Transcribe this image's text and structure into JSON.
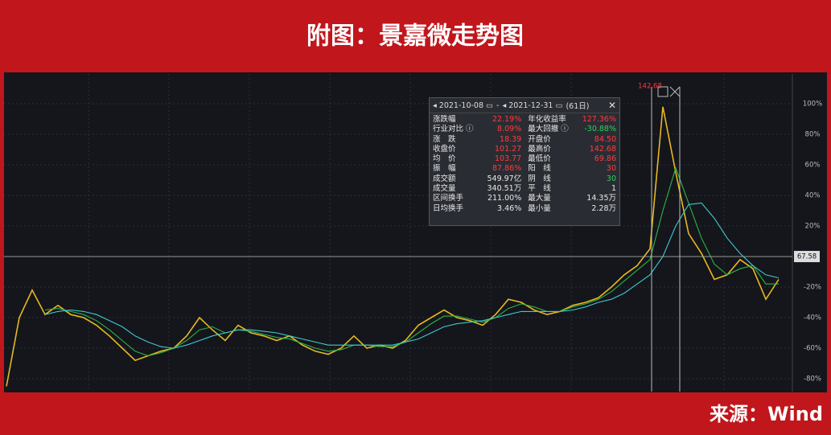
{
  "chart_data": {
    "type": "line",
    "title": "附图：景嘉微走势图",
    "source": "来源：Wind",
    "peak_label": "142.68",
    "last_price_label": "67.58",
    "last_price_level": 0,
    "ylim": [
      -88.4,
      119.5
    ],
    "yticks": [
      {
        "value": 100,
        "label": "100%"
      },
      {
        "value": 80,
        "label": "80%"
      },
      {
        "value": 60,
        "label": "60%"
      },
      {
        "value": 40,
        "label": "40%"
      },
      {
        "value": 20,
        "label": "20%"
      },
      {
        "value": -20,
        "label": "-20%"
      },
      {
        "value": -40,
        "label": "-40%"
      },
      {
        "value": -60,
        "label": "-60%"
      },
      {
        "value": -80,
        "label": "-80%"
      }
    ],
    "grid": true,
    "series": [
      {
        "color": "#e8b820",
        "values": [
          -85,
          -40,
          -22,
          -38,
          -32,
          -38,
          -40,
          -45,
          -52,
          -60,
          -68,
          -65,
          -62,
          -60,
          -52,
          -40,
          -48,
          -55,
          -45,
          -50,
          -52,
          -55,
          -52,
          -58,
          -62,
          -64,
          -60,
          -52,
          -60,
          -58,
          -60,
          -55,
          -45,
          -40,
          -35,
          -40,
          -42,
          -45,
          -38,
          -28,
          -30,
          -35,
          -38,
          -36,
          -32,
          -30,
          -27,
          -20,
          -12,
          -6,
          5,
          98,
          55,
          15,
          2,
          -15,
          -12,
          -2,
          -8,
          -28,
          -15
        ]
      },
      {
        "color": "#2db34a",
        "values": [
          null,
          null,
          null,
          -35,
          -34,
          -36,
          -38,
          -42,
          -48,
          -55,
          -62,
          -65,
          -63,
          -60,
          -55,
          -48,
          -46,
          -50,
          -48,
          -49,
          -51,
          -53,
          -54,
          -57,
          -60,
          -62,
          -61,
          -58,
          -58,
          -59,
          -59,
          -56,
          -50,
          -44,
          -39,
          -39,
          -41,
          -43,
          -40,
          -34,
          -31,
          -33,
          -36,
          -36,
          -33,
          -31,
          -28,
          -23,
          -16,
          -9,
          -2,
          30,
          58,
          35,
          12,
          -5,
          -12,
          -8,
          -6,
          -18,
          -18
        ]
      },
      {
        "color": "#40c8d0",
        "values": [
          null,
          null,
          null,
          -38,
          -36,
          -35,
          -36,
          -38,
          -42,
          -46,
          -52,
          -56,
          -59,
          -60,
          -58,
          -55,
          -52,
          -50,
          -48,
          -48,
          -49,
          -50,
          -52,
          -54,
          -56,
          -58,
          -58,
          -58,
          -58,
          -58,
          -58,
          -56,
          -54,
          -50,
          -46,
          -44,
          -43,
          -42,
          -40,
          -38,
          -36,
          -36,
          -36,
          -36,
          -35,
          -33,
          -30,
          -28,
          -24,
          -18,
          -12,
          0,
          20,
          34,
          35,
          25,
          12,
          2,
          -6,
          -12,
          -14
        ]
      }
    ]
  },
  "tooltip": {
    "start": "2021-10-08",
    "end": "2021-12-31",
    "days": "(61日)",
    "rows": [
      [
        "涨跌幅",
        "22.19%",
        "年化收益率",
        "127.36%"
      ],
      [
        "行业对比 ⓘ",
        "8.09%",
        "最大回撤 ⓘ",
        "-30.88%"
      ],
      [
        "涨　跌",
        "18.39",
        "开盘价",
        "84.50"
      ],
      [
        "收盘价",
        "101.27",
        "最高价",
        "142.68"
      ],
      [
        "均　价",
        "103.77",
        "最低价",
        "69.86"
      ],
      [
        "振　幅",
        "87.86%",
        "阳　线",
        "30"
      ],
      [
        "成交额",
        "549.97亿",
        "阴　线",
        "30"
      ],
      [
        "成交量",
        "340.51万",
        "平　线",
        "1"
      ],
      [
        "区间换手",
        "211.00%",
        "最大量",
        "14.35万"
      ],
      [
        "日均换手",
        "3.46%",
        "最小量",
        "2.28万"
      ]
    ],
    "colors": [
      [
        "r",
        "r"
      ],
      [
        "r",
        "g"
      ],
      [
        "r",
        "r"
      ],
      [
        "r",
        "r"
      ],
      [
        "r",
        "r"
      ],
      [
        "r",
        "r"
      ],
      [
        "w",
        "g"
      ],
      [
        "w",
        "w"
      ],
      [
        "w",
        "w"
      ],
      [
        "w",
        "w"
      ]
    ]
  }
}
